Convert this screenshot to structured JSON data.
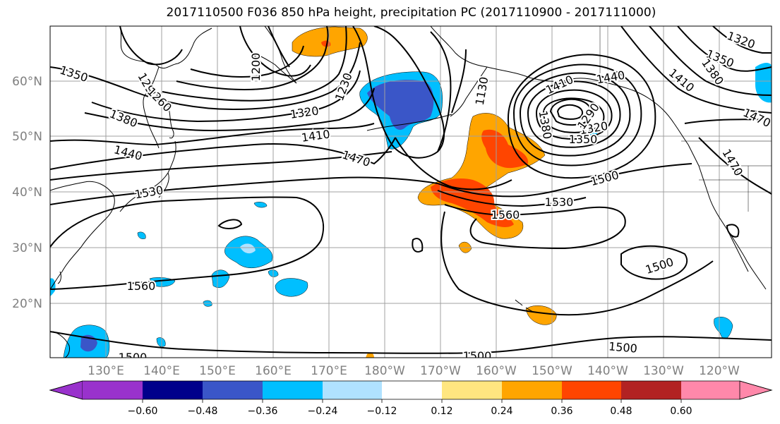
{
  "title": "2017110500 F036 850 hPa height, precipitation PC (2017110900 - 2017111000)",
  "lat_labels": [
    "60°N",
    "50°N",
    "40°N",
    "30°N",
    "20°N"
  ],
  "lon_labels": [
    "130°E",
    "140°E",
    "150°E",
    "160°E",
    "170°E",
    "180°W",
    "170°W",
    "160°W",
    "150°W",
    "140°W",
    "130°W",
    "120°W"
  ],
  "colorbar": {
    "ticks": [
      "−0.60",
      "−0.48",
      "−0.36",
      "−0.24",
      "−0.12",
      "0.12",
      "0.24",
      "0.36",
      "0.48",
      "0.60"
    ],
    "colors": [
      "#9932cc",
      "#00008b",
      "#3a56c8",
      "#00bfff",
      "#b0e2ff",
      "#ffffff",
      "#ffe680",
      "#ffa500",
      "#ff4500",
      "#b22222",
      "#ff88aa"
    ]
  },
  "contour_labels": [
    {
      "text": "1350"
    },
    {
      "text": "1290"
    },
    {
      "text": "1260"
    },
    {
      "text": "1380"
    },
    {
      "text": "1440"
    },
    {
      "text": "1200"
    },
    {
      "text": "1230"
    },
    {
      "text": "1320"
    },
    {
      "text": "1410"
    },
    {
      "text": "1470"
    },
    {
      "text": "1530"
    },
    {
      "text": "1560"
    },
    {
      "text": "1560"
    },
    {
      "text": "1530"
    },
    {
      "text": "1500"
    },
    {
      "text": "1500"
    },
    {
      "text": "1500"
    },
    {
      "text": "1500"
    },
    {
      "text": "1500"
    },
    {
      "text": "1440"
    },
    {
      "text": "1410"
    },
    {
      "text": "1350"
    },
    {
      "text": "1320"
    },
    {
      "text": "1290"
    },
    {
      "text": "1380"
    },
    {
      "text": "1320"
    },
    {
      "text": "1350"
    },
    {
      "text": "1380"
    },
    {
      "text": "1410"
    },
    {
      "text": "1470"
    },
    {
      "text": "1470"
    },
    {
      "text": "1130"
    }
  ]
}
